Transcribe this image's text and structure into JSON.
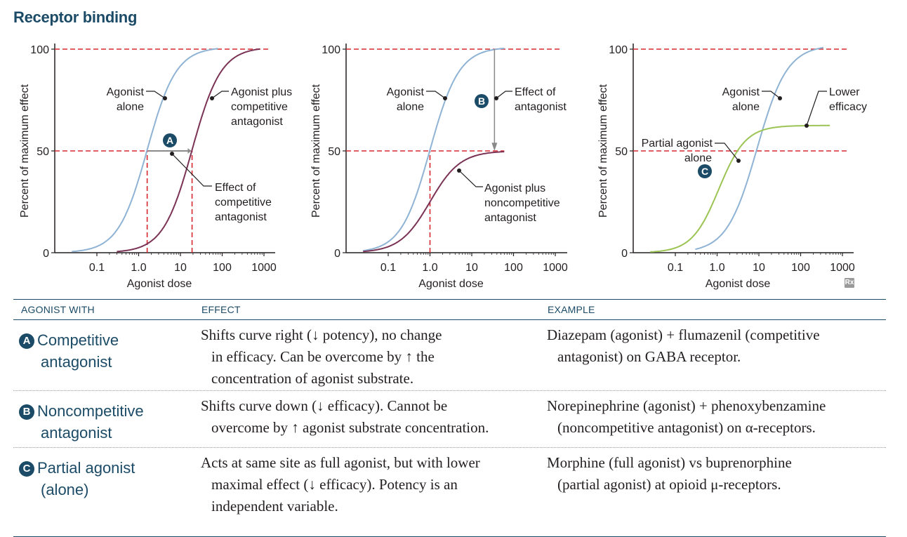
{
  "title": "Receptor binding",
  "charts": {
    "y_axis_label": "Percent of maximum effect",
    "x_axis_label": "Agonist dose",
    "y_ticks": [
      "0",
      "50",
      "100"
    ],
    "x_ticks": [
      "0.1",
      "1.0",
      "10",
      "100",
      "1000"
    ],
    "panel_a": {
      "label_agonist_alone": [
        "Agonist",
        "alone"
      ],
      "label_agonist_plus": [
        "Agonist plus",
        "competitive",
        "antagonist"
      ],
      "label_effect": [
        "Effect of",
        "competitive",
        "antagonist"
      ],
      "badge": "A"
    },
    "panel_b": {
      "label_agonist_alone": [
        "Agonist",
        "alone"
      ],
      "label_effect": [
        "Effect of",
        "antagonist"
      ],
      "label_agonist_plus": [
        "Agonist plus",
        "noncompetitive",
        "antagonist"
      ],
      "badge": "B"
    },
    "panel_c": {
      "label_agonist_alone": [
        "Agonist",
        "alone"
      ],
      "label_lower": [
        "Lower",
        "efficacy"
      ],
      "label_partial": [
        "Partial agonist",
        "alone"
      ],
      "badge": "C"
    },
    "rx_logo": "Rx"
  },
  "chart_data": [
    {
      "type": "line",
      "xlabel": "Agonist dose",
      "ylabel": "Percent of maximum effect",
      "xscale": "log",
      "xlim": [
        0.01,
        1000
      ],
      "ylim": [
        0,
        100
      ],
      "series": [
        {
          "name": "Agonist alone",
          "x": [
            0.03,
            0.1,
            0.3,
            1.0,
            1.6,
            3,
            10,
            30,
            60,
            200
          ],
          "y": [
            0,
            5,
            20,
            40,
            50,
            65,
            87,
            98,
            100,
            100
          ]
        },
        {
          "name": "Agonist plus competitive antagonist",
          "x": [
            0.3,
            1.0,
            3,
            10,
            20,
            30,
            100,
            300,
            1000
          ],
          "y": [
            0,
            5,
            20,
            40,
            50,
            62,
            87,
            98,
            100
          ]
        }
      ],
      "reference_lines": {
        "y": [
          50,
          100
        ]
      }
    },
    {
      "type": "line",
      "xlabel": "Agonist dose",
      "ylabel": "Percent of maximum effect",
      "xscale": "log",
      "xlim": [
        0.01,
        1000
      ],
      "ylim": [
        0,
        100
      ],
      "series": [
        {
          "name": "Agonist alone",
          "x": [
            0.03,
            0.1,
            0.3,
            1.0,
            3,
            10,
            40,
            100
          ],
          "y": [
            0,
            5,
            22,
            50,
            75,
            92,
            100,
            100
          ]
        },
        {
          "name": "Agonist plus noncompetitive antagonist",
          "x": [
            0.03,
            0.1,
            0.3,
            1.0,
            3,
            10,
            40
          ],
          "y": [
            0,
            2,
            9,
            22,
            37,
            46,
            49
          ]
        }
      ],
      "reference_lines": {
        "y": [
          50,
          100
        ]
      }
    },
    {
      "type": "line",
      "xlabel": "Agonist dose",
      "ylabel": "Percent of maximum effect",
      "xscale": "log",
      "xlim": [
        0.01,
        1000
      ],
      "ylim": [
        0,
        100
      ],
      "series": [
        {
          "name": "Agonist alone",
          "x": [
            0.3,
            1.0,
            3,
            10,
            30,
            100,
            300
          ],
          "y": [
            0,
            10,
            30,
            55,
            78,
            95,
            100
          ]
        },
        {
          "name": "Partial agonist alone",
          "x": [
            0.03,
            0.1,
            0.3,
            1.0,
            3,
            10,
            30,
            100,
            500
          ],
          "y": [
            0,
            3,
            13,
            30,
            46,
            56,
            61,
            62,
            62
          ]
        }
      ],
      "reference_lines": {
        "y": [
          50,
          100
        ]
      }
    }
  ],
  "table": {
    "headers": [
      "AGONIST WITH",
      "EFFECT",
      "EXAMPLE"
    ],
    "rows": [
      {
        "badge": "A",
        "agonist": [
          "Competitive",
          "antagonist"
        ],
        "effect": [
          "Shifts curve right (↓ potency), no change",
          "in efficacy. Can be overcome by ↑ the",
          "concentration of agonist substrate."
        ],
        "example": [
          "Diazepam (agonist) + flumazenil (competitive",
          "antagonist) on GABA receptor."
        ]
      },
      {
        "badge": "B",
        "agonist": [
          "Noncompetitive",
          "antagonist"
        ],
        "effect": [
          "Shifts curve down (↓ efficacy). Cannot be",
          "overcome by ↑ agonist substrate concentration."
        ],
        "example": [
          "Norepinephrine (agonist) + phenoxybenzamine",
          "(noncompetitive antagonist) on α-receptors."
        ]
      },
      {
        "badge": "C",
        "agonist": [
          "Partial agonist",
          "(alone)"
        ],
        "effect": [
          "Acts at same site as full agonist, but with lower",
          "maximal effect (↓ efficacy). Potency is an",
          "independent variable."
        ],
        "example": [
          "Morphine (full agonist) vs buprenorphine",
          "(partial agonist) at opioid μ-receptors."
        ]
      }
    ]
  }
}
